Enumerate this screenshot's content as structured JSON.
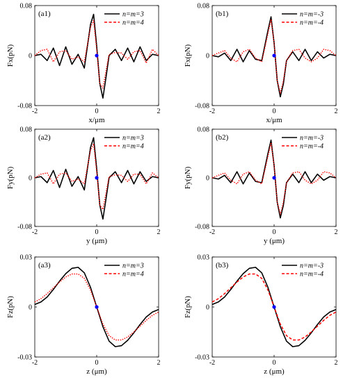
{
  "chart_data": [
    {
      "id": "a1",
      "type": "line",
      "panel_label": "(a1)",
      "xlabel": "x/μm",
      "ylabel": "Fx(pN)",
      "xlim": [
        -2,
        2
      ],
      "ylim": [
        -0.08,
        0.08
      ],
      "xticks": [
        "-2",
        "0",
        "2"
      ],
      "yticks": [
        "-0.08",
        "0",
        "0.08"
      ],
      "legend": "top-right",
      "marker": {
        "x": 0,
        "y": 0,
        "color": "#0000ff"
      },
      "series": [
        {
          "name": "n=m=3",
          "color": "#000000",
          "dash": "solid",
          "x": [
            -2,
            -1.8,
            -1.6,
            -1.4,
            -1.2,
            -1,
            -0.8,
            -0.6,
            -0.4,
            -0.2,
            -0.1,
            0,
            0.1,
            0.2,
            0.3,
            0.4,
            0.6,
            0.8,
            1,
            1.2,
            1.4,
            1.6,
            1.8,
            2
          ],
          "y": [
            0,
            0.002,
            -0.008,
            0.012,
            -0.016,
            0.014,
            -0.014,
            0.002,
            -0.02,
            0.05,
            0.066,
            0.015,
            -0.045,
            -0.068,
            -0.035,
            0,
            0.01,
            -0.008,
            0.012,
            -0.01,
            0.014,
            -0.008,
            0.002,
            0
          ]
        },
        {
          "name": "n=m=4",
          "color": "#ff0000",
          "dash": "dotted",
          "x": [
            -2,
            -1.8,
            -1.6,
            -1.4,
            -1.2,
            -1,
            -0.8,
            -0.6,
            -0.4,
            -0.2,
            -0.1,
            0,
            0.1,
            0.2,
            0.3,
            0.4,
            0.6,
            0.8,
            1,
            1.2,
            1.4,
            1.6,
            1.8,
            2
          ],
          "y": [
            0,
            0.008,
            0.01,
            -0.01,
            0.006,
            0.008,
            -0.006,
            -0.002,
            -0.01,
            0.045,
            0.056,
            0.01,
            -0.045,
            -0.052,
            -0.025,
            0.002,
            0.005,
            0.004,
            -0.006,
            0.006,
            0.008,
            -0.012,
            0.01,
            0
          ]
        }
      ]
    },
    {
      "id": "b1",
      "type": "line",
      "panel_label": "(b1)",
      "xlabel": "x/μm",
      "ylabel": "Fx(pN)",
      "xlim": [
        -2,
        2
      ],
      "ylim": [
        -0.08,
        0.08
      ],
      "xticks": [
        "-2",
        "0",
        "2"
      ],
      "yticks": [
        "-0.08",
        "0",
        "0.08"
      ],
      "legend": "top-right",
      "marker": {
        "x": 0,
        "y": 0,
        "color": "#0000ff"
      },
      "series": [
        {
          "name": "n=m=-3",
          "color": "#000000",
          "dash": "solid",
          "x": [
            -2,
            -1.8,
            -1.6,
            -1.4,
            -1.2,
            -1,
            -0.8,
            -0.6,
            -0.4,
            -0.2,
            -0.1,
            0,
            0.1,
            0.2,
            0.3,
            0.4,
            0.6,
            0.8,
            1,
            1.2,
            1.4,
            1.6,
            1.8,
            2
          ],
          "y": [
            0,
            -0.002,
            0.004,
            -0.008,
            0.01,
            -0.01,
            0.008,
            -0.006,
            -0.008,
            0.04,
            0.062,
            0.02,
            -0.04,
            -0.066,
            -0.045,
            -0.008,
            0.006,
            -0.008,
            0.01,
            -0.008,
            0.006,
            -0.004,
            0.002,
            0
          ]
        },
        {
          "name": "n=m=-4",
          "color": "#ff0000",
          "dash": "dotted",
          "x": [
            -2,
            -1.8,
            -1.6,
            -1.4,
            -1.2,
            -1,
            -0.8,
            -0.6,
            -0.4,
            -0.2,
            -0.1,
            0,
            0.1,
            0.2,
            0.3,
            0.4,
            0.6,
            0.8,
            1,
            1.2,
            1.4,
            1.6,
            1.8,
            2
          ],
          "y": [
            0,
            0.004,
            0.008,
            -0.004,
            -0.01,
            0.006,
            0.01,
            -0.004,
            -0.01,
            0.035,
            0.058,
            0.02,
            -0.04,
            -0.06,
            -0.04,
            -0.008,
            0.008,
            0.01,
            -0.004,
            -0.01,
            -0.004,
            0.01,
            0.008,
            0
          ]
        }
      ]
    },
    {
      "id": "a2",
      "type": "line",
      "panel_label": "(a2)",
      "xlabel": "y (μm)",
      "ylabel": "Fy(pN)",
      "xlim": [
        -2,
        2
      ],
      "ylim": [
        -0.08,
        0.08
      ],
      "xticks": [
        "-2",
        "0",
        "2"
      ],
      "yticks": [
        "-0.08",
        "0",
        "0.08"
      ],
      "legend": "top-right",
      "marker": {
        "x": 0,
        "y": 0,
        "color": "#0000ff"
      },
      "series": [
        {
          "name": "n=m=3",
          "color": "#000000",
          "dash": "solid",
          "x": [
            -2,
            -1.8,
            -1.6,
            -1.4,
            -1.2,
            -1,
            -0.8,
            -0.6,
            -0.4,
            -0.2,
            -0.1,
            0,
            0.1,
            0.2,
            0.3,
            0.4,
            0.6,
            0.8,
            1,
            1.2,
            1.4,
            1.6,
            1.8,
            2
          ],
          "y": [
            0,
            0.002,
            -0.008,
            0.012,
            -0.016,
            0.014,
            -0.014,
            0.002,
            -0.02,
            0.05,
            0.066,
            0.015,
            -0.045,
            -0.068,
            -0.035,
            0,
            0.01,
            -0.008,
            0.012,
            -0.01,
            0.01,
            -0.006,
            0.002,
            0
          ]
        },
        {
          "name": "n=m=4",
          "color": "#ff0000",
          "dash": "dotted",
          "x": [
            -2,
            -1.8,
            -1.6,
            -1.4,
            -1.2,
            -1,
            -0.8,
            -0.6,
            -0.4,
            -0.2,
            -0.1,
            0,
            0.1,
            0.2,
            0.3,
            0.4,
            0.6,
            0.8,
            1,
            1.2,
            1.4,
            1.6,
            1.8,
            2
          ],
          "y": [
            0,
            0.006,
            0.008,
            -0.01,
            0.006,
            0.008,
            -0.006,
            -0.002,
            -0.01,
            0.045,
            0.056,
            0.01,
            -0.045,
            -0.052,
            -0.025,
            0.002,
            0.005,
            0.004,
            -0.006,
            0.006,
            0.006,
            -0.01,
            0.008,
            0
          ]
        }
      ]
    },
    {
      "id": "b2",
      "type": "line",
      "panel_label": "(b2)",
      "xlabel": "y (μm)",
      "ylabel": "Fy(pN)",
      "xlim": [
        -2,
        2
      ],
      "ylim": [
        -0.08,
        0.08
      ],
      "xticks": [
        "-2",
        "0",
        "2"
      ],
      "yticks": [
        "-0.08",
        "0",
        "0.08"
      ],
      "legend": "top-right",
      "marker": {
        "x": 0,
        "y": 0,
        "color": "#0000ff"
      },
      "series": [
        {
          "name": "n=m=-3",
          "color": "#000000",
          "dash": "solid",
          "x": [
            -2,
            -1.8,
            -1.6,
            -1.4,
            -1.2,
            -1,
            -0.8,
            -0.6,
            -0.4,
            -0.2,
            -0.1,
            0,
            0.1,
            0.2,
            0.3,
            0.4,
            0.6,
            0.8,
            1,
            1.2,
            1.4,
            1.6,
            1.8,
            2
          ],
          "y": [
            0,
            -0.002,
            0.004,
            -0.008,
            0.01,
            -0.01,
            0.008,
            -0.006,
            -0.008,
            0.04,
            0.062,
            0.02,
            -0.04,
            -0.066,
            -0.045,
            -0.008,
            0.006,
            -0.008,
            0.01,
            -0.008,
            0.006,
            -0.004,
            0.002,
            0
          ]
        },
        {
          "name": "n=m=-4",
          "color": "#ff0000",
          "dash": "dotted",
          "x": [
            -2,
            -1.8,
            -1.6,
            -1.4,
            -1.2,
            -1,
            -0.8,
            -0.6,
            -0.4,
            -0.2,
            -0.1,
            0,
            0.1,
            0.2,
            0.3,
            0.4,
            0.6,
            0.8,
            1,
            1.2,
            1.4,
            1.6,
            1.8,
            2
          ],
          "y": [
            0,
            0.004,
            0.008,
            -0.004,
            -0.01,
            0.006,
            0.01,
            -0.004,
            -0.01,
            0.035,
            0.058,
            0.02,
            -0.04,
            -0.06,
            -0.04,
            -0.008,
            0.008,
            0.01,
            -0.004,
            -0.01,
            -0.004,
            0.01,
            0.008,
            0
          ]
        }
      ]
    },
    {
      "id": "a3",
      "type": "line",
      "panel_label": "(a3)",
      "xlabel": "z (μm)",
      "ylabel": "Fz(pN)",
      "xlim": [
        -2,
        2
      ],
      "ylim": [
        -0.03,
        0.03
      ],
      "xticks": [
        "-2",
        "0",
        "2"
      ],
      "yticks": [
        "-0.03",
        "0",
        "0.03"
      ],
      "legend": "top-right",
      "marker": {
        "x": 0,
        "y": 0,
        "color": "#0000ff"
      },
      "series": [
        {
          "name": "n=m=3",
          "color": "#000000",
          "dash": "solid",
          "x": [
            -2,
            -1.8,
            -1.6,
            -1.4,
            -1.2,
            -1,
            -0.8,
            -0.6,
            -0.4,
            -0.2,
            0,
            0.2,
            0.4,
            0.6,
            0.8,
            1,
            1.2,
            1.4,
            1.6,
            1.8,
            2
          ],
          "y": [
            0.0015,
            0.003,
            0.006,
            0.0105,
            0.0155,
            0.02,
            0.0232,
            0.0238,
            0.0205,
            0.0118,
            0,
            -0.0118,
            -0.0205,
            -0.0238,
            -0.0232,
            -0.02,
            -0.0155,
            -0.0105,
            -0.006,
            -0.003,
            -0.0015
          ]
        },
        {
          "name": "n=m=4",
          "color": "#ff0000",
          "dash": "dotted",
          "x": [
            -2,
            -1.8,
            -1.6,
            -1.4,
            -1.2,
            -1,
            -0.8,
            -0.6,
            -0.4,
            -0.2,
            0,
            0.2,
            0.4,
            0.6,
            0.8,
            1,
            1.2,
            1.4,
            1.6,
            1.8,
            2
          ],
          "y": [
            0.003,
            0.005,
            0.008,
            0.0115,
            0.015,
            0.018,
            0.0198,
            0.0198,
            0.0172,
            0.0102,
            0,
            -0.0102,
            -0.0172,
            -0.0198,
            -0.0198,
            -0.018,
            -0.015,
            -0.0115,
            -0.008,
            -0.005,
            -0.003
          ]
        }
      ]
    },
    {
      "id": "b3",
      "type": "line",
      "panel_label": "(b3)",
      "xlabel": "z (μm)",
      "ylabel": "Fz(pN)",
      "xlim": [
        -2,
        2
      ],
      "ylim": [
        -0.03,
        0.03
      ],
      "xticks": [
        "-2",
        "0",
        "2"
      ],
      "yticks": [
        "-0.03",
        "0",
        "0.03"
      ],
      "legend": "top-right",
      "marker": {
        "x": 0,
        "y": 0,
        "color": "#0000ff"
      },
      "series": [
        {
          "name": "n=m=-3",
          "color": "#000000",
          "dash": "solid",
          "x": [
            -2,
            -1.8,
            -1.6,
            -1.4,
            -1.2,
            -1,
            -0.8,
            -0.6,
            -0.4,
            -0.2,
            0,
            0.2,
            0.4,
            0.6,
            0.8,
            1,
            1.2,
            1.4,
            1.6,
            1.8,
            2
          ],
          "y": [
            0.0015,
            0.003,
            0.006,
            0.0105,
            0.0155,
            0.02,
            0.0232,
            0.0238,
            0.0205,
            0.0118,
            0,
            -0.0118,
            -0.0205,
            -0.0238,
            -0.0232,
            -0.02,
            -0.0155,
            -0.0105,
            -0.006,
            -0.003,
            -0.0015
          ]
        },
        {
          "name": "n=m=-4",
          "color": "#ff0000",
          "dash": "dashed",
          "x": [
            -2,
            -1.8,
            -1.6,
            -1.4,
            -1.2,
            -1,
            -0.8,
            -0.6,
            -0.4,
            -0.2,
            0,
            0.2,
            0.4,
            0.6,
            0.8,
            1,
            1.2,
            1.4,
            1.6,
            1.8,
            2
          ],
          "y": [
            0.003,
            0.005,
            0.008,
            0.0115,
            0.015,
            0.018,
            0.0198,
            0.0198,
            0.0172,
            0.0102,
            0,
            -0.0102,
            -0.0172,
            -0.0198,
            -0.0198,
            -0.018,
            -0.015,
            -0.0115,
            -0.008,
            -0.005,
            -0.003
          ]
        }
      ]
    }
  ]
}
